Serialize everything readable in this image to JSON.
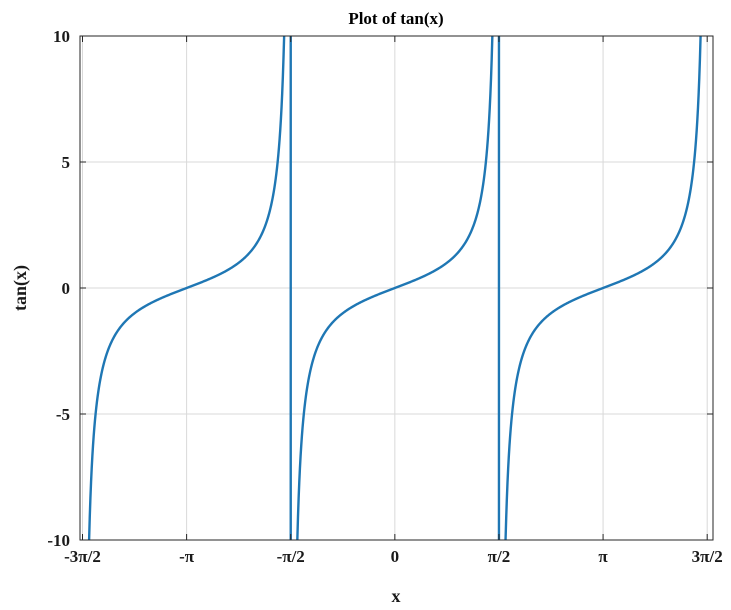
{
  "chart_data": {
    "type": "line",
    "title": "Plot of tan(x)",
    "xlabel": "x",
    "ylabel": "tan(x)",
    "xlim": [
      -4.75,
      4.8
    ],
    "ylim": [
      -10,
      10
    ],
    "grid": true,
    "line_color": "#1f77b4",
    "x_ticks": [
      {
        "value": -4.712389,
        "label": "-3π/2"
      },
      {
        "value": -3.141593,
        "label": "-π"
      },
      {
        "value": -1.570796,
        "label": "-π/2"
      },
      {
        "value": 0,
        "label": "0"
      },
      {
        "value": 1.570796,
        "label": "π/2"
      },
      {
        "value": 3.141593,
        "label": "π"
      },
      {
        "value": 4.712389,
        "label": "3π/2"
      }
    ],
    "y_ticks": [
      {
        "value": -10,
        "label": "-10"
      },
      {
        "value": -5,
        "label": "-5"
      },
      {
        "value": 0,
        "label": "0"
      },
      {
        "value": 5,
        "label": "5"
      },
      {
        "value": 10,
        "label": "10"
      }
    ],
    "series": [
      {
        "x": [
          -4.6126,
          -4.55,
          -4.45,
          -4.35,
          -4.2,
          -4.0,
          -3.8,
          -3.5,
          -3.3,
          -3.14159,
          -3.0,
          -2.8,
          -2.6,
          -2.4,
          -2.2,
          -2.0,
          -1.9,
          -1.8,
          -1.7,
          -1.67
        ],
        "y": [
          -10,
          -8.15,
          -4.98,
          -3.52,
          -2.25,
          -1.16,
          -0.56,
          -0.37,
          -0.16,
          0,
          0.14,
          0.36,
          0.6,
          0.92,
          1.37,
          2.19,
          2.93,
          4.29,
          7.7,
          10
        ]
      },
      {
        "x": [
          -1.4711,
          -1.45,
          -1.4,
          -1.3,
          -1.2,
          -1.0,
          -0.8,
          -0.6,
          -0.4,
          -0.2,
          0,
          0.2,
          0.4,
          0.6,
          0.8,
          1.0,
          1.2,
          1.3,
          1.4,
          1.45,
          1.4711
        ],
        "y": [
          -10,
          -8.17,
          -5.8,
          -3.6,
          -2.57,
          -1.56,
          -1.03,
          -0.68,
          -0.42,
          -0.2,
          0,
          0.2,
          0.42,
          0.68,
          1.03,
          1.56,
          2.57,
          3.6,
          5.8,
          8.17,
          10
        ]
      },
      {
        "x": [
          1.67,
          1.7,
          1.8,
          1.9,
          2.0,
          2.2,
          2.4,
          2.6,
          2.8,
          3.0,
          3.14159,
          3.3,
          3.5,
          3.8,
          4.0,
          4.2,
          4.35,
          4.45,
          4.55,
          4.6126
        ],
        "y": [
          -10,
          -7.7,
          -4.29,
          -2.93,
          -2.19,
          -1.37,
          -0.92,
          -0.6,
          -0.36,
          -0.14,
          0,
          0.16,
          0.37,
          0.56,
          1.16,
          2.25,
          3.52,
          4.98,
          8.15,
          10
        ]
      }
    ],
    "vertical_lines": [
      -1.5708,
      1.5708
    ]
  }
}
